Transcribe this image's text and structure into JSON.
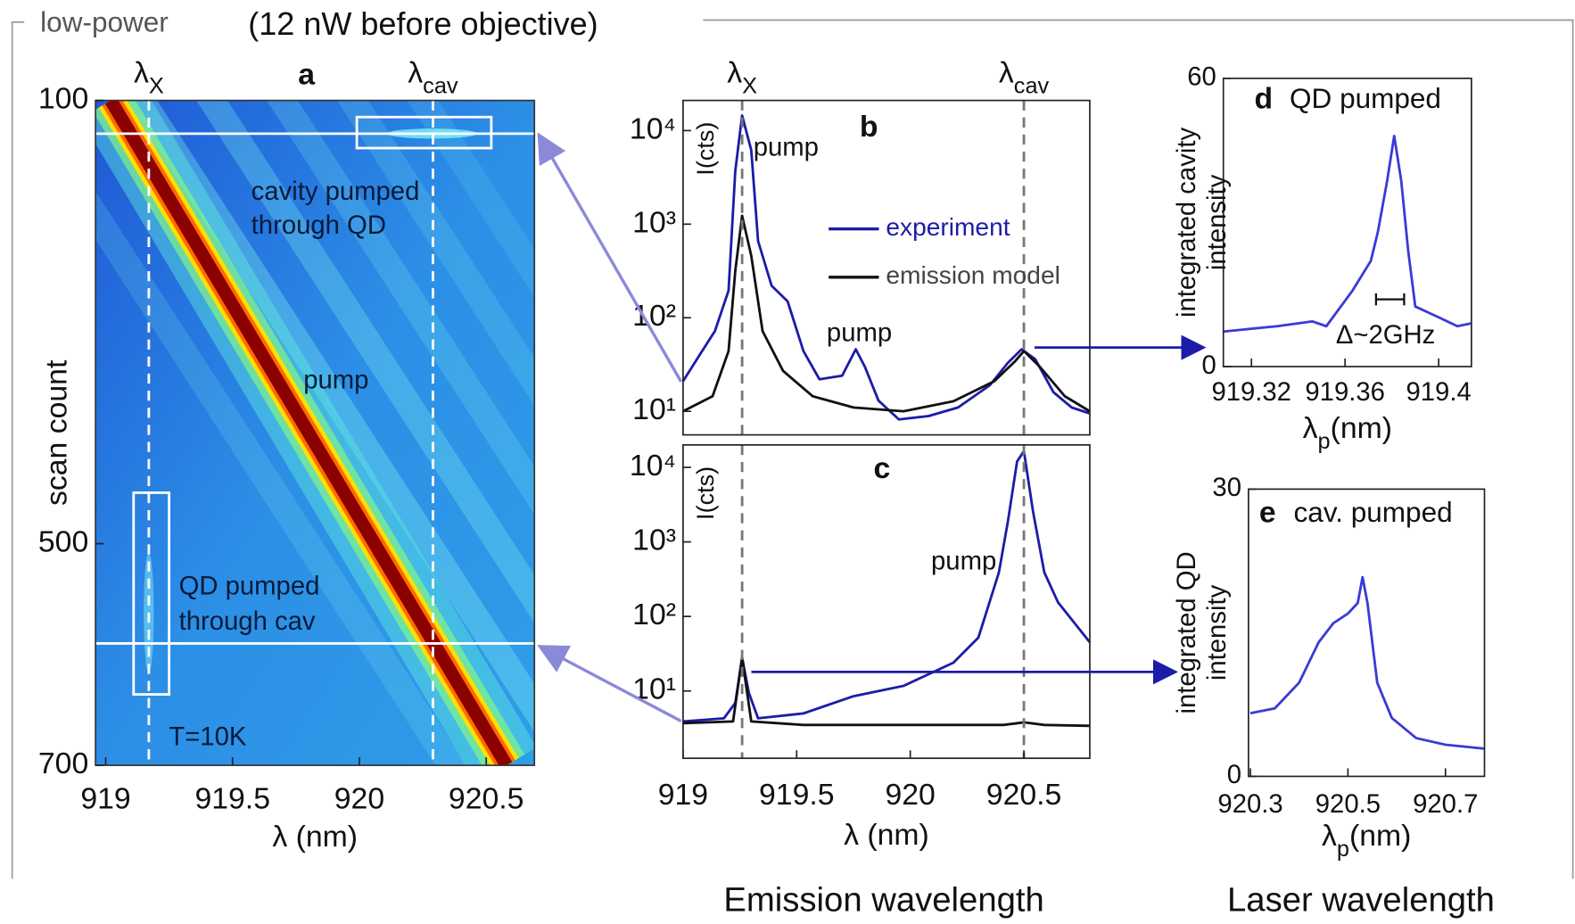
{
  "title": "low-power",
  "subtitle": "(12 nW before objective)",
  "captions": [
    "Emission wavelength",
    "Laser wavelength"
  ],
  "chart_data": [
    {
      "type": "heatmap",
      "label": "a",
      "xlabel": "λ (nm)",
      "ylabel": "scan count",
      "xlim": [
        918.96,
        920.69
      ],
      "ylim": [
        700,
        100
      ],
      "xticks": [
        919,
        919.5,
        920,
        920.5
      ],
      "yticks": [
        100,
        500,
        700
      ],
      "series": [
        {
          "x": [
            919.02,
            920.58
          ],
          "values": [
            100,
            700
          ],
          "color": "#8b0000"
        }
      ],
      "vlines": [
        {
          "x": 919.17,
          "symbol": "λ",
          "sub": "X"
        },
        {
          "x": 920.29,
          "symbol": "λ",
          "sub": "cav"
        }
      ],
      "hlines": [
        130,
        590
      ],
      "boxes": [
        {
          "x": [
            919.99,
            920.52
          ],
          "y": [
            115,
            143
          ]
        },
        {
          "x": [
            919.11,
            919.25
          ],
          "y": [
            454,
            636
          ]
        }
      ],
      "annotations": [
        "cavity pumped",
        "through QD",
        "pump",
        "QD pumped",
        "through cav",
        "T=10K"
      ]
    },
    {
      "type": "line",
      "label": "b",
      "log_y": true,
      "ylabel": "I(cts)",
      "xlim": [
        919,
        920.79
      ],
      "ylim": [
        5.6,
        21000
      ],
      "yticks": [
        {
          "value": 10,
          "label": "10¹"
        },
        {
          "value": 100,
          "label": "10²"
        },
        {
          "value": 1000,
          "label": "10³"
        },
        {
          "value": 10000,
          "label": "10⁴"
        }
      ],
      "series": [
        {
          "name": "experiment",
          "color": "#1c1ca8",
          "x": [
            919.0,
            919.07,
            919.14,
            919.2,
            919.23,
            919.26,
            919.3,
            919.33,
            919.39,
            919.46,
            919.53,
            919.6,
            919.7,
            919.76,
            919.8,
            919.86,
            919.95,
            920.08,
            920.21,
            920.35,
            920.43,
            920.49,
            920.55,
            920.63,
            920.71,
            920.79
          ],
          "values": [
            21,
            39,
            72,
            195,
            3700,
            14500,
            6200,
            660,
            220,
            150,
            44,
            22,
            24,
            46,
            30,
            13,
            8.2,
            8.9,
            11,
            19,
            33,
            46,
            36,
            16,
            11,
            9.5
          ]
        },
        {
          "name": "emission model",
          "color": "#111111",
          "x": [
            919.0,
            919.13,
            919.2,
            919.23,
            919.26,
            919.3,
            919.35,
            919.44,
            919.57,
            919.75,
            919.97,
            920.19,
            920.37,
            920.46,
            920.5,
            920.57,
            920.68,
            920.79
          ],
          "values": [
            10,
            14.5,
            44,
            316,
            1230,
            460,
            72,
            27,
            14.5,
            11,
            10,
            12.8,
            21,
            34,
            44,
            30,
            14.5,
            10
          ]
        }
      ],
      "vlines": [
        {
          "x": 919.26,
          "symbol": "λ",
          "sub": "X"
        },
        {
          "x": 920.5,
          "symbol": "λ",
          "sub": "cav"
        }
      ],
      "annotations": [
        "pump",
        "pump"
      ]
    },
    {
      "type": "line",
      "label": "c",
      "log_y": true,
      "ylabel": "I(cts)",
      "xlabel": "λ (nm)",
      "xlim": [
        919,
        920.79
      ],
      "ylim": [
        1.25,
        20000
      ],
      "xticks": [
        919,
        919.5,
        920,
        920.5
      ],
      "yticks": [
        {
          "value": 10,
          "label": "10¹"
        },
        {
          "value": 100,
          "label": "10²"
        },
        {
          "value": 1000,
          "label": "10³"
        },
        {
          "value": 10000,
          "label": "10⁴"
        }
      ],
      "series": [
        {
          "name": "experiment",
          "color": "#1c1ca8",
          "x": [
            919.0,
            919.18,
            919.23,
            919.26,
            919.29,
            919.33,
            919.53,
            919.75,
            919.97,
            920.19,
            920.3,
            920.39,
            920.43,
            920.47,
            920.5,
            920.54,
            920.59,
            920.65,
            920.79
          ],
          "values": [
            3.9,
            4.3,
            6.9,
            28,
            9.4,
            4.3,
            5.0,
            8.5,
            11.7,
            24,
            52,
            390,
            1900,
            12000,
            16500,
            2600,
            390,
            155,
            45
          ]
        },
        {
          "name": "emission model",
          "color": "#111111",
          "x": [
            919.0,
            919.22,
            919.26,
            919.3,
            919.53,
            919.97,
            920.41,
            920.5,
            920.59,
            920.79
          ],
          "values": [
            3.7,
            3.9,
            28,
            3.9,
            3.5,
            3.5,
            3.5,
            3.8,
            3.5,
            3.4
          ]
        }
      ],
      "vlines": [
        {
          "x": 919.26
        },
        {
          "x": 920.5
        }
      ],
      "annotations": [
        "pump"
      ]
    },
    {
      "type": "line",
      "label": "d",
      "title": "QD pumped",
      "xlabel": {
        "symbol": "λ",
        "sub": "p",
        "unit": "(nm)"
      },
      "ylabel": [
        "integrated cavity",
        "intensity"
      ],
      "xlim": [
        919.308,
        919.414
      ],
      "ylim": [
        0,
        60
      ],
      "xticks": [
        919.32,
        919.36,
        919.4
      ],
      "yticks": [
        0,
        60
      ],
      "series": [
        {
          "color": "#3a3ad8",
          "x": [
            919.308,
            919.331,
            919.346,
            919.352,
            919.363,
            919.371,
            919.374,
            919.378,
            919.381,
            919.384,
            919.387,
            919.39,
            919.399,
            919.408,
            919.414
          ],
          "values": [
            7.3,
            8.4,
            9.4,
            8.4,
            15.7,
            22,
            28,
            38.7,
            48,
            38.7,
            24,
            12.5,
            10.5,
            8.4,
            9.0
          ]
        }
      ],
      "annotations": [
        "Δ~2GHz"
      ]
    },
    {
      "type": "line",
      "label": "e",
      "title": "cav. pumped",
      "xlabel": {
        "symbol": "λ",
        "sub": "p",
        "unit": "(nm)"
      },
      "ylabel": [
        "integrated QD",
        "intensity"
      ],
      "xlim": [
        920.296,
        920.78
      ],
      "ylim": [
        0,
        30
      ],
      "xticks": [
        920.3,
        920.5,
        920.7
      ],
      "yticks": [
        0,
        30
      ],
      "series": [
        {
          "color": "#3a3ad8",
          "x": [
            920.3,
            920.35,
            920.4,
            920.44,
            920.47,
            920.5,
            920.52,
            920.53,
            920.54,
            920.56,
            920.59,
            920.64,
            920.7,
            920.78
          ],
          "values": [
            6.6,
            7.1,
            9.8,
            14,
            16,
            17,
            18.1,
            20.8,
            18.1,
            9.8,
            6.1,
            4.0,
            3.3,
            2.9
          ]
        }
      ]
    }
  ]
}
